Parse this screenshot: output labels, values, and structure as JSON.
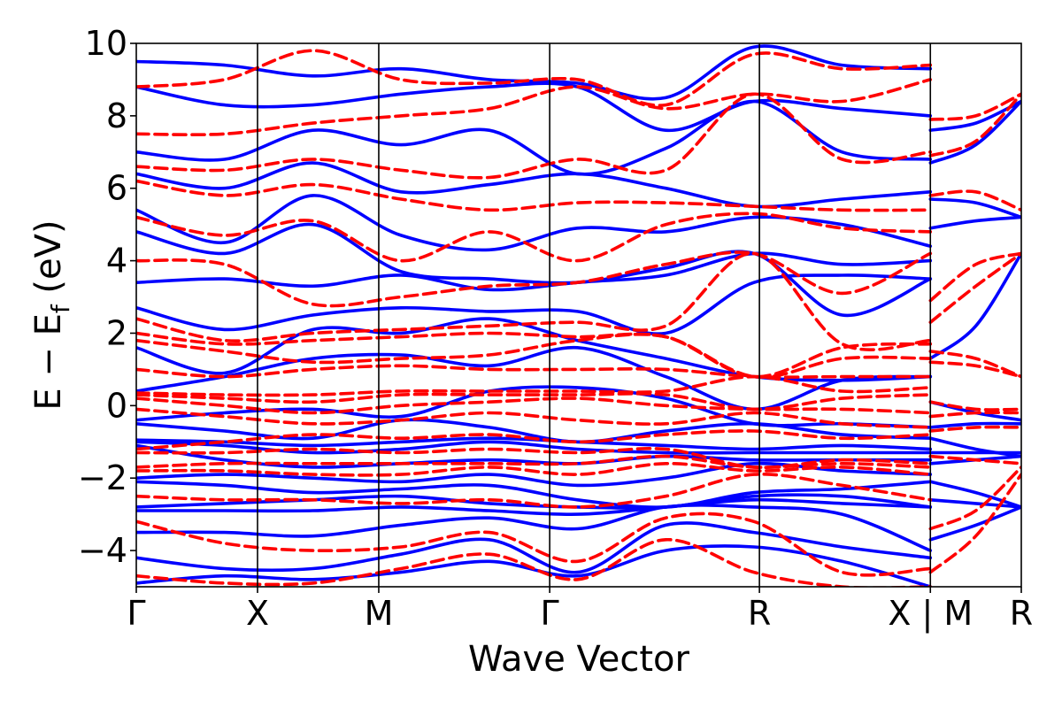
{
  "chart_data": {
    "type": "line",
    "title": "",
    "xlabel": "Wave Vector",
    "ylabel": {
      "main": "E − E",
      "sub": "f",
      "unit": " (eV)"
    },
    "ylim": [
      -5,
      10
    ],
    "yticks": [
      -4,
      -2,
      0,
      2,
      4,
      6,
      8,
      10
    ],
    "ytick_labels": [
      "−4",
      "−2",
      "0",
      "2",
      "4",
      "6",
      "8",
      "10"
    ],
    "grid": false,
    "legend": "none",
    "k_path": {
      "x_range": [
        0,
        7.3
      ],
      "points": [
        {
          "label": "Γ",
          "x": 0.0
        },
        {
          "label": "X",
          "x": 1.0
        },
        {
          "label": "M",
          "x": 2.0
        },
        {
          "label": "Γ",
          "x": 3.41
        },
        {
          "label": "R",
          "x": 5.14
        },
        {
          "label": "X | M",
          "x": 6.55
        },
        {
          "label": "R",
          "x": 7.3
        }
      ],
      "panel_break_x": 6.55
    },
    "series": [
      {
        "style": "solid",
        "color": "#0000ff",
        "bands": [
          [
            -4.9,
            -4.7,
            -4.8,
            -4.6,
            -4.3,
            -4.7,
            -4.0,
            -3.9,
            -4.3,
            -5.0
          ],
          [
            -4.2,
            -4.5,
            -4.5,
            -4.1,
            -3.7,
            -4.6,
            -3.3,
            -3.5,
            -3.9,
            -4.2
          ],
          [
            -3.5,
            -3.5,
            -3.6,
            -3.3,
            -3.1,
            -3.4,
            -2.8,
            -2.8,
            -3.0,
            -4.0
          ],
          [
            -2.9,
            -2.9,
            -2.9,
            -2.8,
            -2.9,
            -3.0,
            -2.8,
            -2.6,
            -2.7,
            -2.8
          ],
          [
            -2.8,
            -2.7,
            -2.6,
            -2.5,
            -2.7,
            -2.8,
            -2.8,
            -2.5,
            -2.5,
            -2.8
          ],
          [
            -2.1,
            -2.2,
            -2.4,
            -2.3,
            -2.2,
            -2.6,
            -2.8,
            -2.4,
            -2.3,
            -2.1
          ],
          [
            -2.0,
            -1.9,
            -2.0,
            -2.1,
            -1.9,
            -2.2,
            -2.0,
            -1.6,
            -1.8,
            -1.9
          ],
          [
            -1.1,
            -1.5,
            -1.7,
            -1.6,
            -1.5,
            -1.6,
            -1.4,
            -1.5,
            -1.5,
            -1.5
          ],
          [
            -1.0,
            -1.1,
            -1.3,
            -1.2,
            -1.0,
            -1.2,
            -1.3,
            -1.3,
            -1.3,
            -1.3
          ],
          [
            -0.95,
            -1.0,
            -1.1,
            -1.0,
            -0.9,
            -1.0,
            -1.1,
            -1.2,
            -1.1,
            -1.2
          ],
          [
            -0.5,
            -0.7,
            -0.9,
            -0.4,
            -0.6,
            -1.0,
            -0.7,
            -0.5,
            -0.8,
            -0.9
          ],
          [
            -0.4,
            -0.2,
            -0.1,
            -0.3,
            0.4,
            0.5,
            0.2,
            -0.5,
            -0.5,
            -0.6
          ],
          [
            0.4,
            0.8,
            1.3,
            1.4,
            1.1,
            1.6,
            0.8,
            -0.1,
            0.7,
            0.8
          ],
          [
            1.6,
            0.9,
            2.1,
            2.0,
            2.4,
            1.8,
            1.3,
            0.8,
            0.7,
            0.8
          ],
          [
            2.7,
            2.1,
            2.5,
            2.7,
            2.6,
            2.6,
            2.0,
            3.4,
            3.6,
            3.5
          ],
          [
            3.4,
            3.5,
            3.3,
            3.6,
            3.2,
            3.4,
            3.6,
            4.2,
            3.9,
            4.0
          ],
          [
            4.8,
            4.2,
            5.0,
            3.7,
            3.5,
            3.4,
            3.8,
            4.2,
            2.5,
            3.5
          ],
          [
            5.4,
            4.5,
            5.8,
            4.7,
            4.3,
            4.9,
            4.8,
            5.2,
            5.0,
            4.4
          ],
          [
            6.4,
            6.0,
            6.7,
            5.9,
            6.1,
            6.4,
            6.0,
            5.5,
            5.7,
            5.9
          ],
          [
            7.0,
            6.8,
            7.6,
            7.2,
            7.6,
            6.4,
            7.1,
            8.4,
            7.0,
            6.8
          ],
          [
            8.8,
            8.3,
            8.3,
            8.6,
            8.8,
            8.8,
            7.6,
            8.4,
            8.2,
            8.0
          ],
          [
            9.5,
            9.4,
            9.1,
            9.3,
            9.0,
            8.9,
            8.5,
            9.9,
            9.4,
            9.3
          ]
        ],
        "bands_mr": [
          [
            -3.7,
            -3.3,
            -2.8
          ],
          [
            -2.6,
            -2.7,
            -2.8
          ],
          [
            -2.1,
            -2.4,
            -2.8
          ],
          [
            -1.6,
            -1.5,
            -1.4
          ],
          [
            -1.3,
            -1.3,
            -1.3
          ],
          [
            -0.9,
            -1.2,
            -1.4
          ],
          [
            -0.6,
            -0.5,
            -0.5
          ],
          [
            0.1,
            -0.2,
            -0.4
          ],
          [
            1.3,
            2.2,
            4.2
          ],
          [
            4.9,
            5.1,
            5.2
          ],
          [
            5.7,
            5.6,
            5.2
          ],
          [
            6.7,
            7.2,
            8.4
          ],
          [
            7.6,
            7.8,
            8.4
          ]
        ]
      },
      {
        "style": "dashed",
        "color": "#ff0000",
        "bands": [
          [
            -4.7,
            -4.9,
            -4.9,
            -4.5,
            -4.1,
            -4.8,
            -3.7,
            -4.6,
            -5.0,
            -5.0
          ],
          [
            -3.2,
            -3.8,
            -4.0,
            -3.9,
            -3.5,
            -4.3,
            -3.1,
            -3.2,
            -4.6,
            -4.5
          ],
          [
            -2.5,
            -2.6,
            -2.6,
            -2.7,
            -2.6,
            -2.8,
            -2.5,
            -1.9,
            -2.2,
            -2.6
          ],
          [
            -1.8,
            -1.8,
            -1.9,
            -1.9,
            -1.7,
            -1.9,
            -1.6,
            -1.8,
            -1.7,
            -1.9
          ],
          [
            -1.7,
            -1.6,
            -1.6,
            -1.6,
            -1.6,
            -1.6,
            -1.4,
            -1.7,
            -1.6,
            -1.7
          ],
          [
            -1.3,
            -1.3,
            -1.2,
            -1.3,
            -1.2,
            -1.3,
            -1.2,
            -1.7,
            -1.5,
            -1.6
          ],
          [
            -1.2,
            -1.0,
            -0.8,
            -0.9,
            -0.8,
            -1.0,
            -0.8,
            -0.7,
            -0.9,
            -0.8
          ],
          [
            -0.1,
            -0.3,
            -0.5,
            -0.4,
            -0.2,
            -0.4,
            -0.5,
            -0.2,
            -0.5,
            -0.6
          ],
          [
            0.2,
            0.0,
            -0.2,
            0.0,
            0.1,
            0.2,
            0.0,
            -0.1,
            -0.1,
            -0.2
          ],
          [
            0.3,
            0.2,
            0.1,
            0.3,
            0.3,
            0.3,
            0.3,
            -0.1,
            0.2,
            0.3
          ],
          [
            0.35,
            0.3,
            0.3,
            0.4,
            0.4,
            0.4,
            0.4,
            0.8,
            0.4,
            0.5
          ],
          [
            1.0,
            0.8,
            1.0,
            1.1,
            1.0,
            1.0,
            1.0,
            0.8,
            0.8,
            0.8
          ],
          [
            1.8,
            1.5,
            1.2,
            1.3,
            1.4,
            1.8,
            1.9,
            0.8,
            1.3,
            1.3
          ],
          [
            2.0,
            1.7,
            1.8,
            1.9,
            2.0,
            1.9,
            1.9,
            0.8,
            1.6,
            1.7
          ],
          [
            2.4,
            1.8,
            2.0,
            2.1,
            2.2,
            2.3,
            2.2,
            4.2,
            1.7,
            1.8
          ],
          [
            4.0,
            3.9,
            2.8,
            3.0,
            3.3,
            3.4,
            3.9,
            4.2,
            3.1,
            4.2
          ],
          [
            5.2,
            4.7,
            5.1,
            4.0,
            4.8,
            4.0,
            5.0,
            5.3,
            4.9,
            4.8
          ],
          [
            6.2,
            5.8,
            6.1,
            5.7,
            5.4,
            5.6,
            5.6,
            5.5,
            5.4,
            5.4
          ],
          [
            6.6,
            6.5,
            6.8,
            6.5,
            6.3,
            6.8,
            6.5,
            8.6,
            6.8,
            7.0
          ],
          [
            7.5,
            7.5,
            7.8,
            8.0,
            8.2,
            8.8,
            8.2,
            8.6,
            8.4,
            9.0
          ],
          [
            8.8,
            9.0,
            9.8,
            9.0,
            8.9,
            9.0,
            8.3,
            9.7,
            9.3,
            9.4
          ]
        ],
        "bands_mr": [
          [
            -4.6,
            -3.6,
            -1.9
          ],
          [
            -3.4,
            -2.9,
            -1.7
          ],
          [
            -1.4,
            -1.5,
            -1.6
          ],
          [
            -0.7,
            -0.6,
            -0.6
          ],
          [
            -0.3,
            -0.2,
            -0.2
          ],
          [
            0.1,
            -0.1,
            -0.1
          ],
          [
            1.2,
            1.1,
            0.8
          ],
          [
            1.5,
            1.3,
            0.8
          ],
          [
            2.3,
            3.3,
            4.2
          ],
          [
            2.9,
            3.9,
            4.2
          ],
          [
            5.8,
            5.9,
            5.4
          ],
          [
            6.9,
            7.3,
            8.6
          ],
          [
            7.9,
            8.0,
            8.6
          ]
        ]
      }
    ]
  }
}
